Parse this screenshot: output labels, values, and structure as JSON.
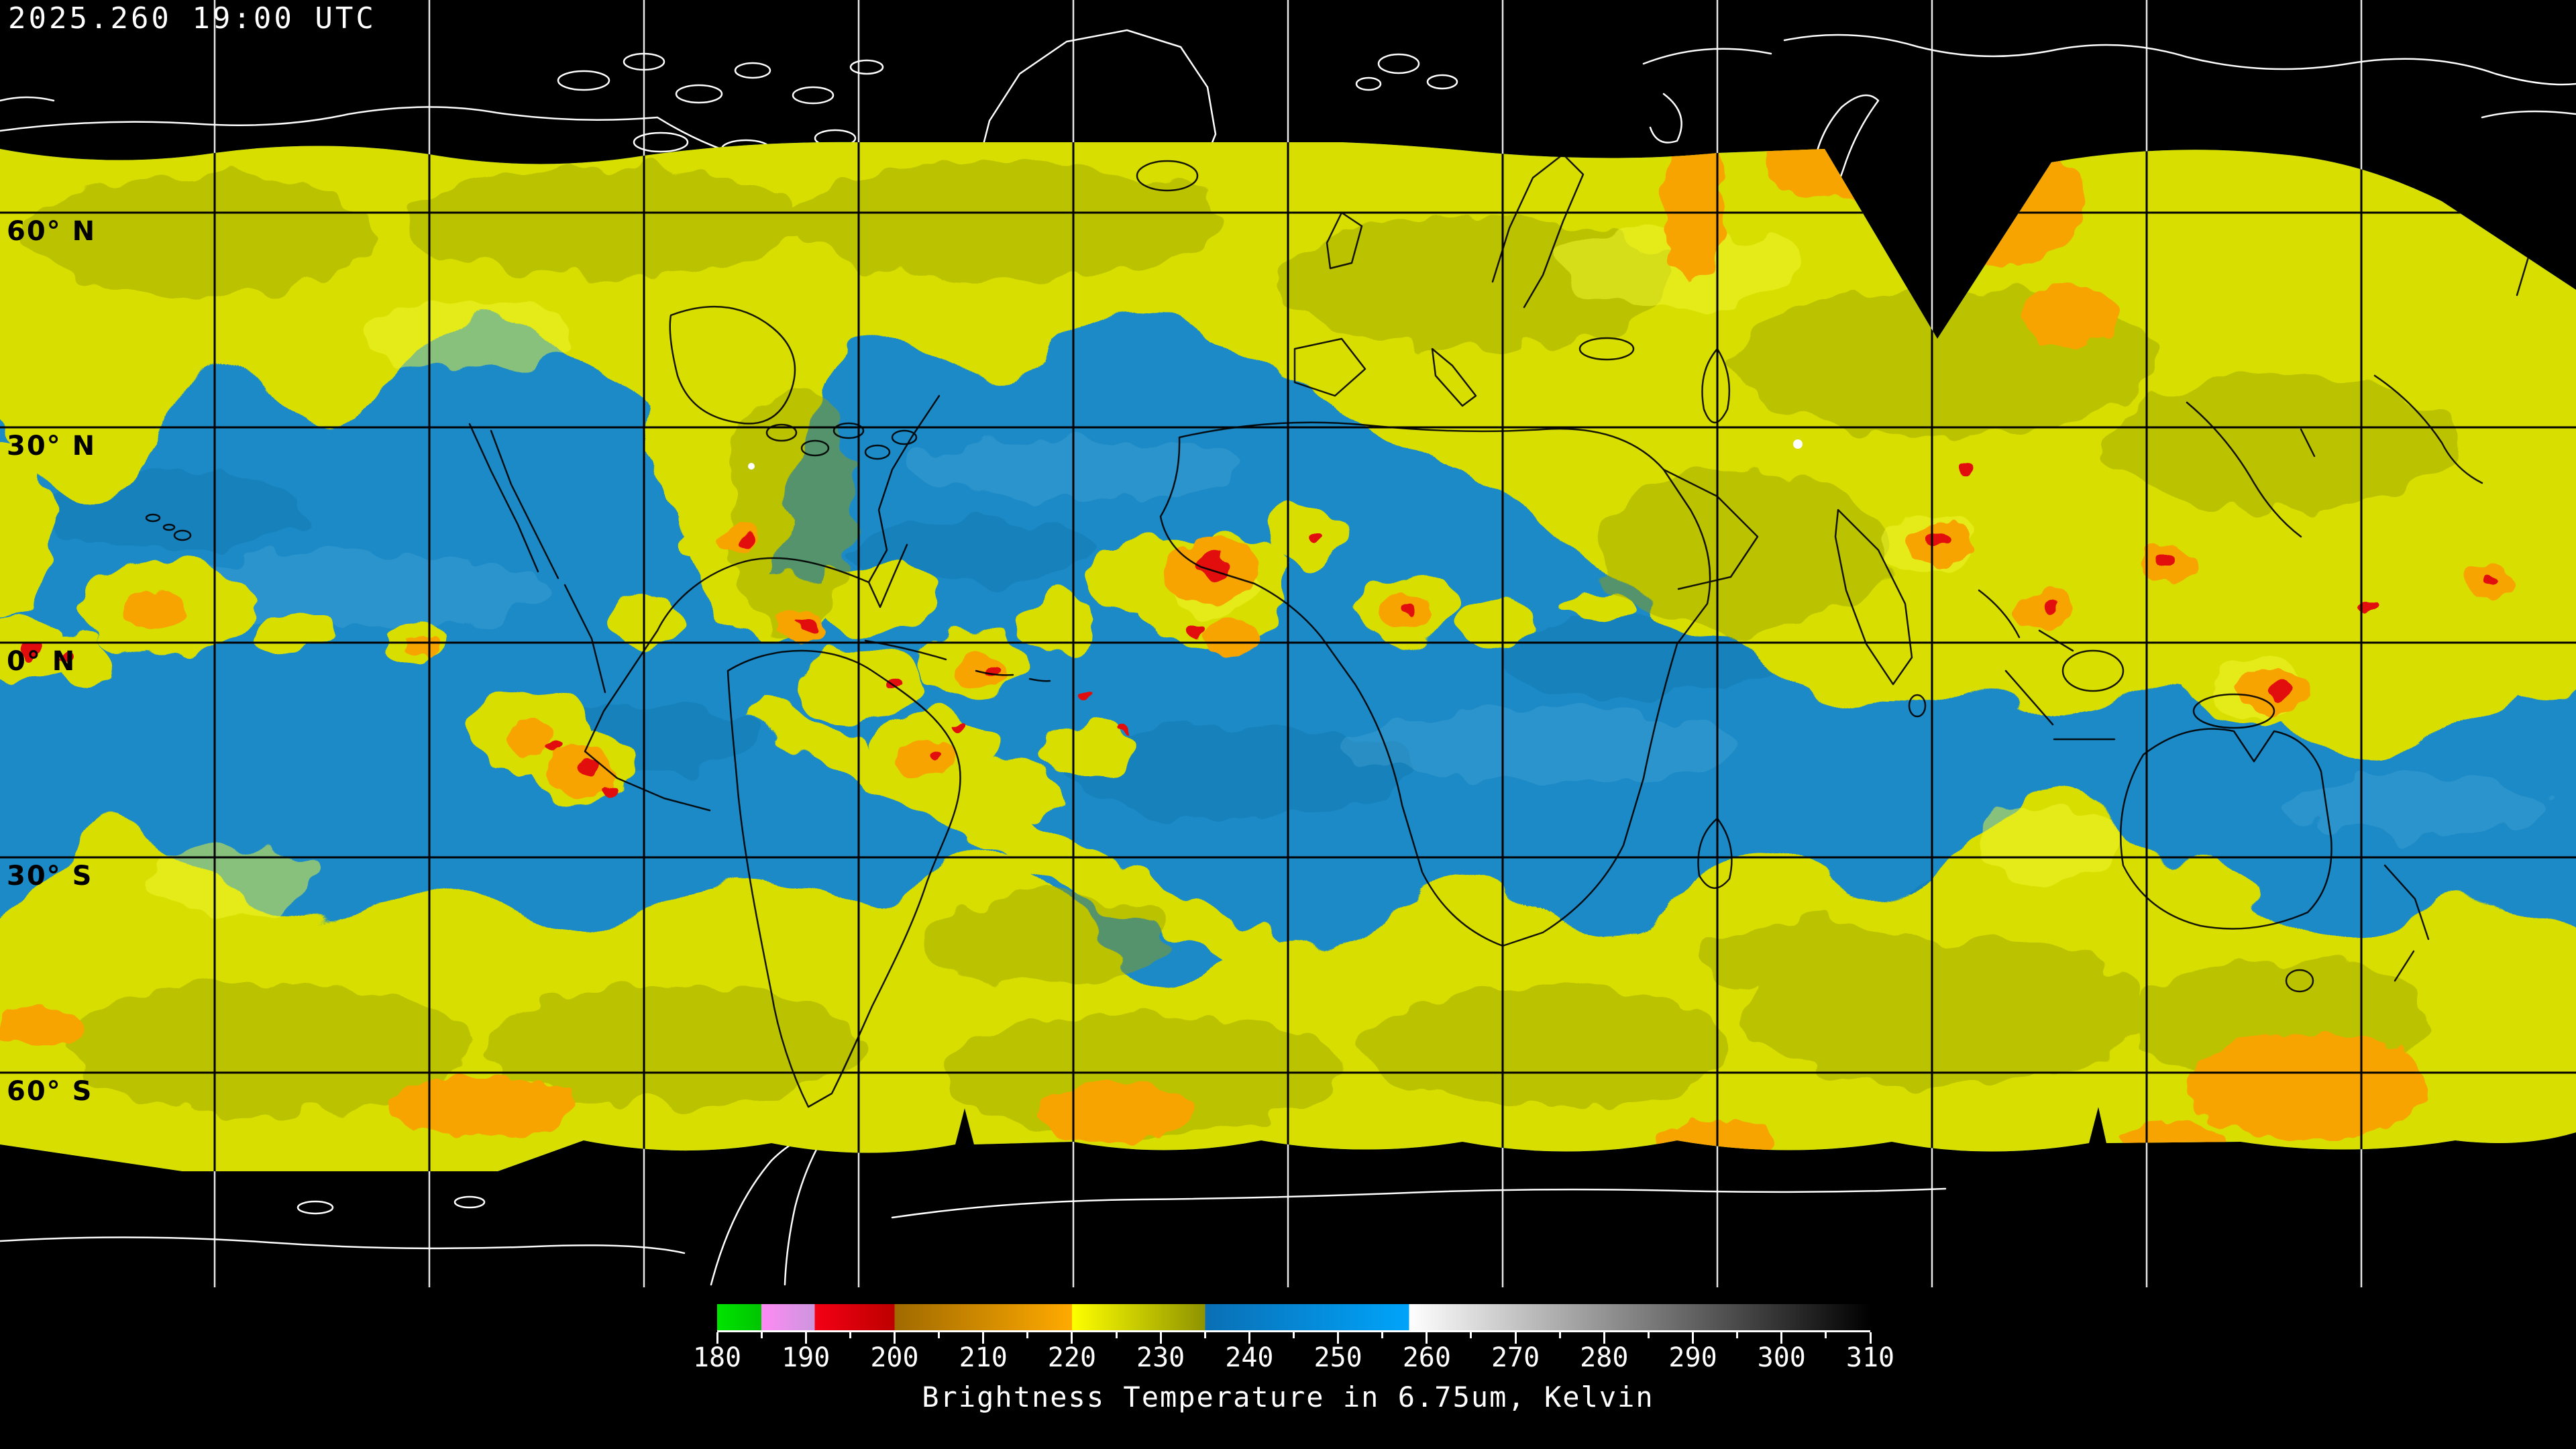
{
  "header": {
    "timestamp": "2025.260 19:00 UTC"
  },
  "map": {
    "latitude_labels": [
      {
        "text": "60° N"
      },
      {
        "text": "30° N"
      },
      {
        "text": "0° N"
      },
      {
        "text": "30° S"
      },
      {
        "text": "60° S"
      }
    ],
    "palette": {
      "space_black": "#000000",
      "moist_blue": "#1b8ac7",
      "dry_yellow": "#d8df00",
      "shade_olive": "#9aa000",
      "warm_orange": "#f7a300",
      "convective_red": "#e21010",
      "coastline_over_space": "#ffffff",
      "coastline_over_data": "#000000",
      "graticule_over_space": "#e8e8e8",
      "graticule_over_data": "#000000"
    }
  },
  "colorbar": {
    "title": "Brightness Temperature in 6.75um, Kelvin",
    "units": "Kelvin",
    "range_k": [
      180,
      310
    ],
    "major_step_k": 10,
    "minor_step_k": 5,
    "tick_labels": [
      "180",
      "190",
      "200",
      "210",
      "220",
      "230",
      "240",
      "250",
      "260",
      "270",
      "280",
      "290",
      "300",
      "310"
    ],
    "segments": [
      {
        "from": 180,
        "to": 185,
        "color_start": "#00e400",
        "color_end": "#00c400"
      },
      {
        "from": 185,
        "to": 191,
        "color_start": "#ff8af5",
        "color_end": "#cc96dd"
      },
      {
        "from": 191,
        "to": 200,
        "color_start": "#f40014",
        "color_end": "#bd0000"
      },
      {
        "from": 200,
        "to": 220,
        "color_start": "#a06a00",
        "color_end": "#ffaa00"
      },
      {
        "from": 220,
        "to": 235,
        "color_start": "#fdff00",
        "color_end": "#8f9300"
      },
      {
        "from": 235,
        "to": 258,
        "color_start": "#0a6fb4",
        "color_end": "#00a4fa"
      },
      {
        "from": 258,
        "to": 310,
        "color_start": "#ffffff",
        "color_end": "#000000"
      }
    ]
  }
}
